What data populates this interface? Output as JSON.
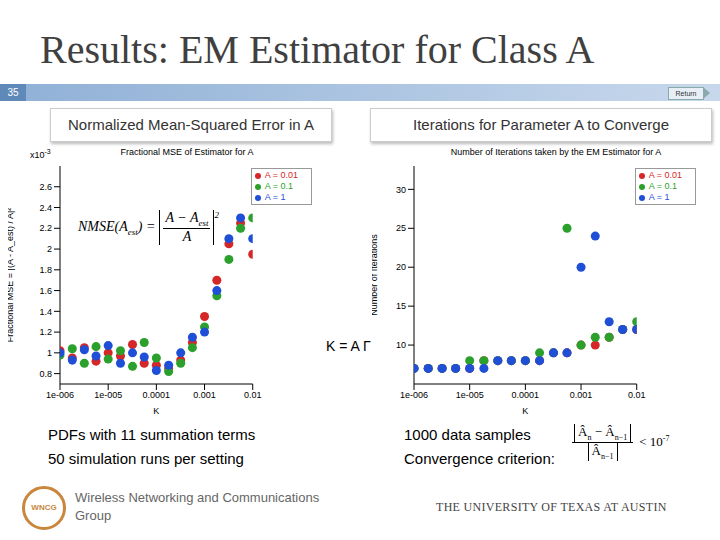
{
  "slide": {
    "title": "Results: EM Estimator for Class A",
    "number": "35",
    "return_label": "Return",
    "left_header": "Normalized Mean-Squared Error in A",
    "right_header": "Iterations for Parameter A to Converge",
    "annotation": "K = A Γ",
    "left_notes": [
      "PDFs with 11 summation terms",
      "50 simulation runs per setting"
    ],
    "right_notes": [
      "1000 data samples",
      "Convergence criterion:"
    ],
    "nmse_formula": {
      "lhs": "NMSE(",
      "lhs_var": "A",
      "lhs_sub": "est",
      "lhs_close": ") =",
      "num": "A − A",
      "num_sub": "est",
      "den": "A",
      "power": "2"
    },
    "convergence_formula": {
      "num_a": "Â",
      "num_a_sub": "n",
      "num_op": "−",
      "num_b": "Â",
      "num_b_sub": "n−1",
      "den": "Â",
      "den_sub": "n−1",
      "rhs": "< 10",
      "rhs_sup": "-7"
    },
    "logo_text": "WNCG",
    "group_name": "Wireless Networking and Communications Group",
    "university": "THE UNIVERSITY OF TEXAS AT AUSTIN"
  },
  "chart_data": [
    {
      "type": "scatter",
      "title": "Fractional MSE of Estimator for A",
      "x_label": "K",
      "y_label": "Fractional MSE = |(A - A_est) / A|²",
      "annotations": [
        {
          "text": "x10",
          "sup": "-3"
        }
      ],
      "log": "x",
      "grid": false,
      "legend": "top-right",
      "xlim": [
        1e-06,
        0.01
      ],
      "xticks": [
        {
          "value": 1e-06,
          "label": "1e-006"
        },
        {
          "value": 1e-05,
          "label": "1e-005"
        },
        0.0001,
        0.001,
        0.01
      ],
      "ylim": [
        0.7,
        2.8
      ],
      "yticks": [
        0.8,
        1,
        1.2,
        1.4,
        1.6,
        1.8,
        2,
        2.2,
        2.4,
        2.6
      ],
      "x": [
        1e-06,
        1.8e-06,
        3.2e-06,
        5.6e-06,
        1e-05,
        1.8e-05,
        3.2e-05,
        5.6e-05,
        0.0001,
        0.00018,
        0.00032,
        0.00056,
        0.001,
        0.0018,
        0.0032,
        0.0056,
        0.01
      ],
      "series": [
        {
          "name": "A = 0.01",
          "color": "#d62728",
          "marker": "circle",
          "values": [
            1.02,
            0.95,
            1.05,
            0.92,
            1.0,
            0.97,
            1.08,
            0.9,
            0.88,
            0.85,
            0.93,
            1.1,
            1.35,
            1.7,
            2.05,
            2.25,
            1.95
          ]
        },
        {
          "name": "A = 0.1",
          "color": "#2ca02c",
          "marker": "circle",
          "values": [
            0.98,
            1.04,
            0.9,
            1.06,
            0.94,
            1.02,
            0.87,
            1.1,
            0.95,
            0.82,
            0.9,
            1.05,
            1.25,
            1.55,
            1.9,
            2.2,
            2.3
          ]
        },
        {
          "name": "A = 1",
          "color": "#1f4fd6",
          "marker": "circle",
          "values": [
            1.0,
            0.93,
            1.03,
            0.97,
            1.07,
            0.9,
            1.0,
            0.96,
            0.83,
            0.88,
            1.0,
            1.15,
            1.2,
            1.6,
            2.1,
            2.3,
            2.1
          ]
        }
      ]
    },
    {
      "type": "scatter",
      "title": "Number of Iterations taken by the EM Estimator for A",
      "x_label": "K",
      "y_label": "Number of Iterations",
      "log": "x",
      "grid": false,
      "legend": "top-right",
      "xlim": [
        1e-06,
        0.01
      ],
      "xticks": [
        {
          "value": 1e-06,
          "label": "1e-006"
        },
        {
          "value": 1e-05,
          "label": "1e-005"
        },
        0.0001,
        0.001,
        0.01
      ],
      "ylim": [
        5,
        33
      ],
      "yticks": [
        10,
        15,
        20,
        25,
        30
      ],
      "x": [
        1e-06,
        1.8e-06,
        3.2e-06,
        5.6e-06,
        1e-05,
        1.8e-05,
        3.2e-05,
        5.6e-05,
        0.0001,
        0.00018,
        0.00032,
        0.00056,
        0.001,
        0.0018,
        0.0032,
        0.0056,
        0.01
      ],
      "series": [
        {
          "name": "A = 0.01",
          "color": "#d62728",
          "marker": "circle",
          "values": [
            7,
            7,
            7,
            7,
            7,
            8,
            8,
            8,
            8,
            8,
            9,
            9,
            10,
            10,
            11,
            12,
            12
          ]
        },
        {
          "name": "A = 0.1",
          "color": "#2ca02c",
          "marker": "circle",
          "values": [
            7,
            7,
            7,
            7,
            8,
            8,
            8,
            8,
            8,
            9,
            9,
            25,
            10,
            11,
            11,
            12,
            13
          ]
        },
        {
          "name": "A = 1",
          "color": "#1f4fd6",
          "marker": "circle",
          "values": [
            7,
            7,
            7,
            7,
            7,
            7,
            8,
            8,
            8,
            8,
            9,
            9,
            20,
            24,
            13,
            12,
            12
          ]
        }
      ]
    }
  ]
}
